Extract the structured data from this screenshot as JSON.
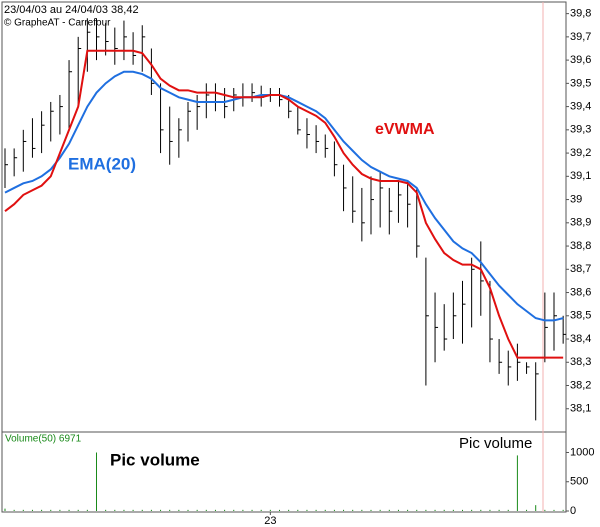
{
  "chart_data": [
    {
      "type": "ohlc",
      "title": "23/04/03 au 24/04/03  38,42",
      "subtitle": "© GrapheAT - Carrefour",
      "low": [
        39.05,
        39.1,
        39.12,
        39.18,
        39.2,
        39.25,
        39.28,
        39.3,
        39.4,
        39.55,
        39.6,
        39.62,
        39.58,
        39.6,
        39.58,
        39.55,
        39.45,
        39.2,
        39.15,
        39.18,
        39.25,
        39.3,
        39.35,
        39.38,
        39.35,
        39.38,
        39.4,
        39.42,
        39.4,
        39.42,
        39.4,
        39.35,
        39.28,
        39.22,
        39.2,
        39.18,
        39.1,
        38.95,
        38.9,
        38.82,
        38.85,
        38.88,
        38.85,
        38.9,
        38.88,
        38.75,
        38.2,
        38.3,
        38.35,
        38.4,
        38.38,
        38.45,
        38.5,
        38.3,
        38.25,
        38.2,
        38.22,
        38.25,
        38.05,
        38.3,
        38.35,
        38.38
      ],
      "high": [
        39.22,
        39.22,
        39.3,
        39.35,
        39.38,
        39.42,
        39.45,
        39.6,
        39.7,
        39.78,
        39.78,
        39.76,
        39.74,
        39.77,
        39.72,
        39.75,
        39.65,
        39.5,
        39.4,
        39.35,
        39.42,
        39.45,
        39.5,
        39.5,
        39.48,
        39.48,
        39.5,
        39.5,
        39.49,
        39.48,
        39.48,
        39.45,
        39.4,
        39.35,
        39.32,
        39.28,
        39.25,
        39.15,
        39.1,
        39.05,
        39.1,
        39.12,
        39.05,
        39.08,
        39.08,
        39.05,
        38.75,
        38.6,
        38.55,
        38.6,
        38.65,
        38.75,
        38.82,
        38.65,
        38.4,
        38.35,
        38.38,
        38.3,
        38.3,
        38.6,
        38.6,
        38.5
      ],
      "close": [
        39.15,
        39.18,
        39.25,
        39.22,
        39.32,
        39.38,
        39.4,
        39.55,
        39.65,
        39.72,
        39.7,
        39.68,
        39.65,
        39.7,
        39.62,
        39.7,
        39.5,
        39.3,
        39.25,
        39.3,
        39.38,
        39.4,
        39.45,
        39.42,
        39.4,
        39.45,
        39.44,
        39.46,
        39.44,
        39.45,
        39.43,
        39.38,
        39.3,
        39.28,
        39.25,
        39.22,
        39.15,
        39.05,
        38.95,
        38.9,
        39.0,
        39.05,
        38.95,
        39.02,
        38.98,
        38.8,
        38.5,
        38.45,
        38.4,
        38.5,
        38.55,
        38.7,
        38.65,
        38.4,
        38.3,
        38.28,
        38.3,
        38.28,
        38.25,
        38.45,
        38.5,
        38.42
      ],
      "series": [
        {
          "name": "EMA(20)",
          "color": "#1f6fe0",
          "values": [
            39.03,
            39.05,
            39.07,
            39.08,
            39.1,
            39.13,
            39.18,
            39.24,
            39.32,
            39.4,
            39.46,
            39.5,
            39.53,
            39.55,
            39.55,
            39.54,
            39.52,
            39.48,
            39.46,
            39.44,
            39.43,
            39.42,
            39.42,
            39.42,
            39.42,
            39.43,
            39.44,
            39.44,
            39.45,
            39.45,
            39.45,
            39.44,
            39.42,
            39.4,
            39.38,
            39.35,
            39.3,
            39.25,
            39.21,
            39.17,
            39.14,
            39.12,
            39.1,
            39.09,
            39.08,
            39.05,
            38.98,
            38.92,
            38.87,
            38.82,
            38.79,
            38.77,
            38.73,
            38.68,
            38.63,
            38.59,
            38.55,
            38.52,
            38.49,
            38.48,
            38.48,
            38.49
          ]
        },
        {
          "name": "eVWMA",
          "color": "#e01010",
          "values": [
            38.95,
            38.98,
            39.02,
            39.04,
            39.06,
            39.1,
            39.2,
            39.3,
            39.4,
            39.64,
            39.64,
            39.64,
            39.64,
            39.64,
            39.64,
            39.63,
            39.58,
            39.52,
            39.49,
            39.47,
            39.47,
            39.46,
            39.46,
            39.46,
            39.45,
            39.44,
            39.44,
            39.44,
            39.44,
            39.45,
            39.45,
            39.43,
            39.4,
            39.38,
            39.36,
            39.33,
            39.27,
            39.2,
            39.15,
            39.11,
            39.09,
            39.08,
            39.08,
            39.08,
            39.07,
            39.03,
            38.9,
            38.83,
            38.77,
            38.74,
            38.72,
            38.72,
            38.7,
            38.62,
            38.5,
            38.4,
            38.32,
            38.32,
            38.32,
            38.32,
            38.32,
            38.32
          ]
        }
      ],
      "ylim": [
        38,
        39.85
      ],
      "yticks": [
        {
          "value": 38.1,
          "label": "38,1"
        },
        {
          "value": 38.2,
          "label": "38,2"
        },
        {
          "value": 38.3,
          "label": "38,3"
        },
        {
          "value": 38.4,
          "label": "38,4"
        },
        {
          "value": 38.5,
          "label": "38,5"
        },
        {
          "value": 38.6,
          "label": "38,6"
        },
        {
          "value": 38.7,
          "label": "38,7"
        },
        {
          "value": 38.8,
          "label": "38,8"
        },
        {
          "value": 38.9,
          "label": "38,9"
        },
        {
          "value": 39,
          "label": "39"
        },
        {
          "value": 39.1,
          "label": "39,1"
        },
        {
          "value": 39.2,
          "label": "39,2"
        },
        {
          "value": 39.3,
          "label": "39,3"
        },
        {
          "value": 39.4,
          "label": "39,4"
        },
        {
          "value": 39.5,
          "label": "39,5"
        },
        {
          "value": 39.6,
          "label": "39,6"
        },
        {
          "value": 39.7,
          "label": "39,7"
        },
        {
          "value": 39.8,
          "label": "39,8"
        }
      ]
    },
    {
      "type": "bar",
      "title": "Volume(50) 6971",
      "annotations": [
        "Pic volume",
        "Pic volume"
      ],
      "color": "#1a8a1a",
      "categories": [
        null,
        null,
        null,
        null,
        null,
        null,
        null,
        null,
        null,
        null,
        null,
        null,
        null,
        null,
        null,
        null,
        null,
        null,
        null,
        null,
        null,
        null,
        null,
        null,
        null,
        null,
        null,
        null,
        null,
        "23",
        null,
        null,
        null,
        null,
        null,
        null,
        null,
        null,
        null,
        null,
        null,
        null,
        null,
        null,
        null,
        null,
        null,
        null,
        null,
        null,
        null,
        null,
        null,
        null,
        null,
        null,
        null,
        null,
        null,
        null,
        null,
        null
      ],
      "values": [
        40,
        20,
        20,
        20,
        20,
        20,
        20,
        20,
        20,
        20,
        1000,
        20,
        20,
        20,
        20,
        20,
        20,
        20,
        20,
        20,
        20,
        20,
        20,
        20,
        20,
        20,
        20,
        20,
        20,
        20,
        20,
        20,
        20,
        20,
        20,
        20,
        20,
        20,
        20,
        20,
        20,
        20,
        20,
        20,
        20,
        20,
        20,
        20,
        20,
        20,
        20,
        20,
        20,
        20,
        20,
        20,
        950,
        20,
        100,
        20,
        20,
        20
      ],
      "ylim": [
        0,
        1350
      ],
      "yticks": [
        0,
        500,
        1000
      ]
    }
  ]
}
